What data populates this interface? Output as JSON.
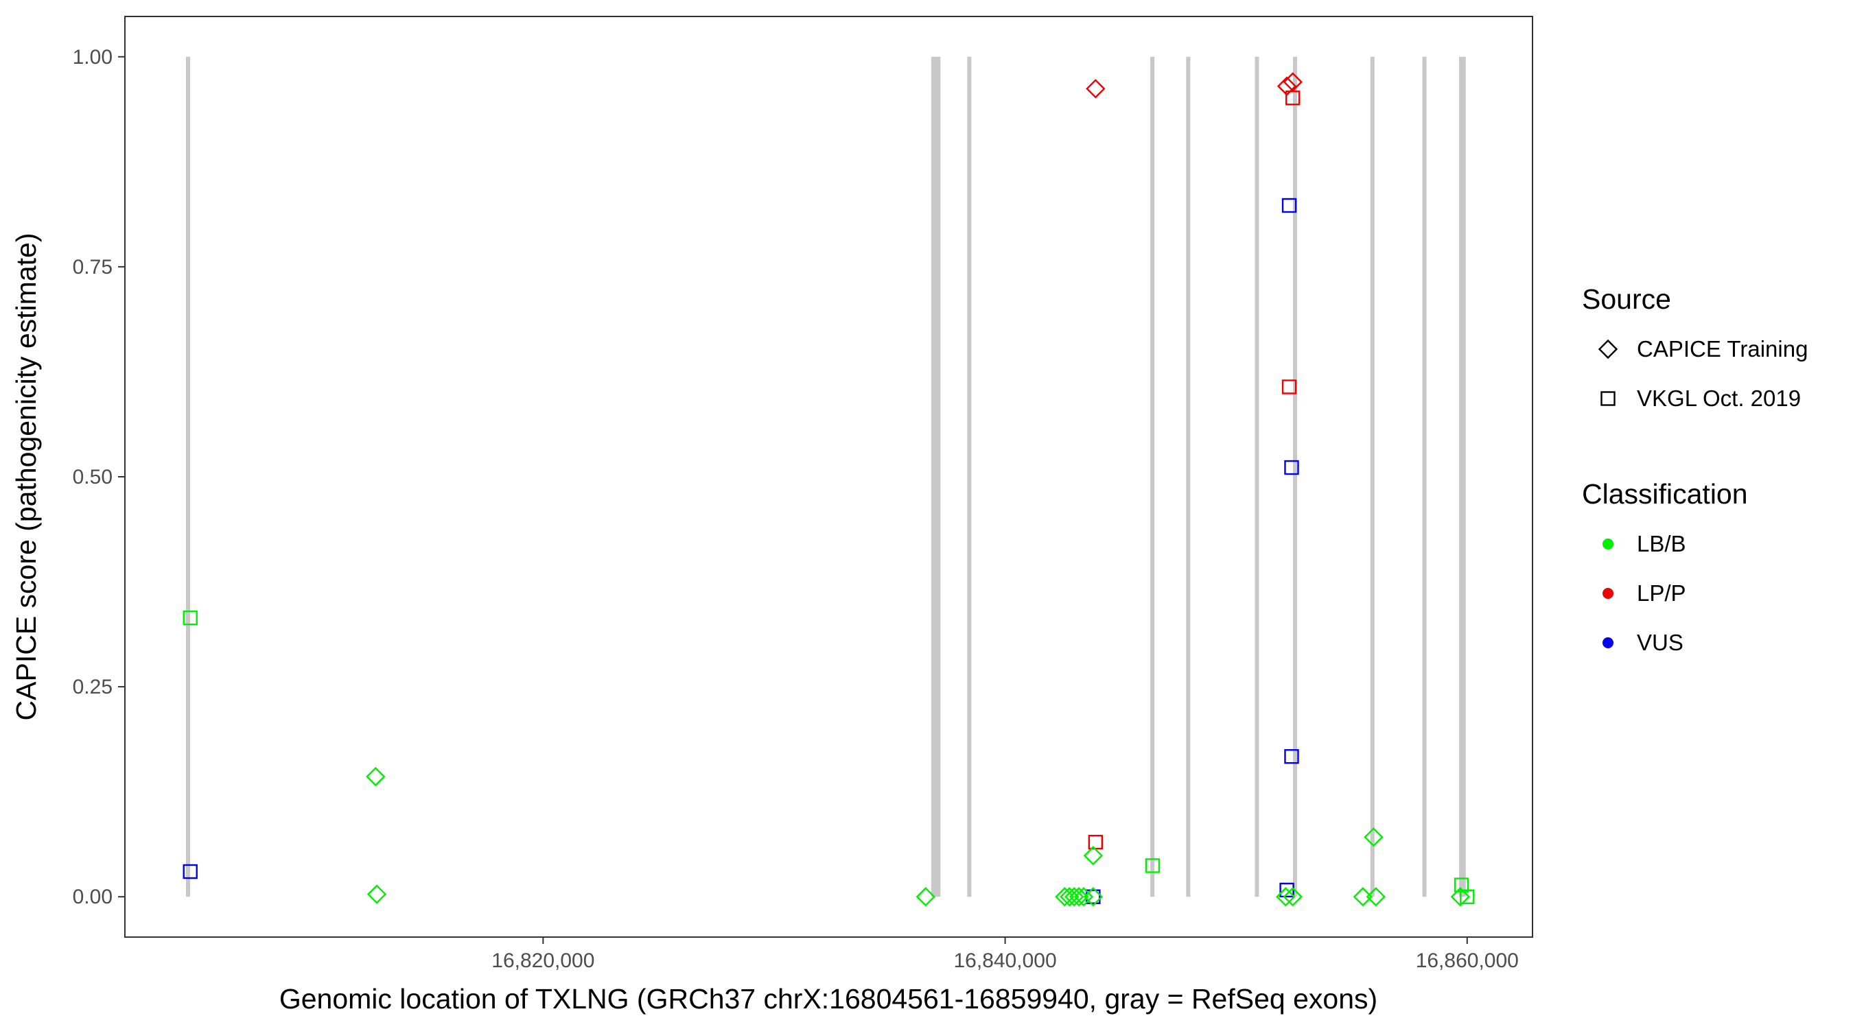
{
  "chart_data": {
    "type": "scatter",
    "xlabel": "Genomic location of TXLNG (GRCh37 chrX:16804561-16859940, gray = RefSeq exons)",
    "ylabel": "CAPICE score (pathogenicity estimate)",
    "xlim": [
      16801897,
      16862829
    ],
    "ylim": [
      -0.048,
      1.048
    ],
    "xticks": [
      {
        "value": 16820000,
        "label": "16,820,000"
      },
      {
        "value": 16840000,
        "label": "16,840,000"
      },
      {
        "value": 16860000,
        "label": "16,860,000"
      }
    ],
    "yticks": [
      {
        "value": 0,
        "label": "0.00"
      },
      {
        "value": 0.25,
        "label": "0.25"
      },
      {
        "value": 0.5,
        "label": "0.50"
      },
      {
        "value": 0.75,
        "label": "0.75"
      },
      {
        "value": 1,
        "label": "1.00"
      }
    ],
    "exon_color": "#c8c8c8",
    "exons": [
      [
        16804561,
        16804700
      ],
      [
        16836800,
        16837200
      ],
      [
        16838400,
        16838500
      ],
      [
        16846300,
        16846450
      ],
      [
        16847850,
        16848000
      ],
      [
        16850850,
        16850950
      ],
      [
        16852500,
        16852600
      ],
      [
        16855850,
        16855950
      ],
      [
        16858100,
        16858200
      ],
      [
        16859650,
        16859940
      ]
    ],
    "legends": [
      {
        "title": "Source",
        "entries": [
          {
            "label": "CAPICE Training",
            "shape": "diamond"
          },
          {
            "label": "VKGL Oct. 2019",
            "shape": "square"
          }
        ]
      },
      {
        "title": "Classification",
        "entries": [
          {
            "label": "LB/B",
            "color": "#00ee00"
          },
          {
            "label": "LP/P",
            "color": "#ee0000"
          },
          {
            "label": "VUS",
            "color": "#0000ee"
          }
        ]
      }
    ],
    "series": [
      {
        "source": "VKGL Oct. 2019",
        "classification": "LB/B",
        "x": [
          16804726,
          16846383,
          16859755,
          16860000
        ],
        "values": [
          0.332,
          0.037,
          0.014,
          0
        ]
      },
      {
        "source": "VKGL Oct. 2019",
        "classification": "VUS",
        "x": [
          16804726,
          16843812,
          16852196,
          16852299,
          16852401,
          16852401
        ],
        "values": [
          0.03,
          0,
          0.008,
          0.823,
          0.511,
          0.167
        ]
      },
      {
        "source": "VKGL Oct. 2019",
        "classification": "LP/P",
        "x": [
          16843915,
          16852299,
          16852452
        ],
        "values": [
          0.065,
          0.607,
          0.951
        ]
      },
      {
        "source": "CAPICE Training",
        "classification": "LB/B",
        "x": [
          16812749,
          16812800,
          16836561,
          16842578,
          16842784,
          16842990,
          16843195,
          16843401,
          16843812,
          16843812,
          16852144,
          16852452,
          16855487,
          16855950,
          16856050,
          16859704
        ],
        "values": [
          0.143,
          0.003,
          0,
          0,
          0,
          0,
          0,
          0,
          0.049,
          0,
          0,
          0,
          0,
          0.071,
          0,
          0
        ]
      },
      {
        "source": "CAPICE Training",
        "classification": "LP/P",
        "x": [
          16843915,
          16852196,
          16852452
        ],
        "values": [
          0.962,
          0.965,
          0.97
        ]
      }
    ]
  }
}
